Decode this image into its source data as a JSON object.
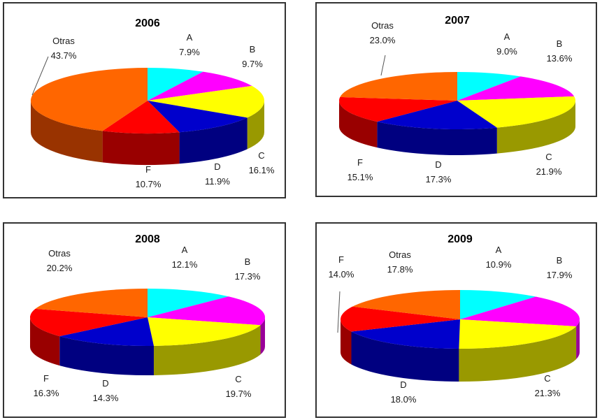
{
  "chart_data": [
    {
      "type": "pie",
      "title": "2006",
      "slices": [
        {
          "label": "A",
          "value": 7.9,
          "value_label": "7.9%"
        },
        {
          "label": "B",
          "value": 9.7,
          "value_label": "9.7%"
        },
        {
          "label": "C",
          "value": 16.1,
          "value_label": "16.1%"
        },
        {
          "label": "D",
          "value": 11.9,
          "value_label": "11.9%"
        },
        {
          "label": "F",
          "value": 10.7,
          "value_label": "10.7%"
        },
        {
          "label": "Otras",
          "value": 43.7,
          "value_label": "43.7%"
        }
      ]
    },
    {
      "type": "pie",
      "title": "2007",
      "slices": [
        {
          "label": "A",
          "value": 9.0,
          "value_label": "9.0%"
        },
        {
          "label": "B",
          "value": 13.6,
          "value_label": "13.6%"
        },
        {
          "label": "C",
          "value": 21.9,
          "value_label": "21.9%"
        },
        {
          "label": "D",
          "value": 17.3,
          "value_label": "17.3%"
        },
        {
          "label": "F",
          "value": 15.1,
          "value_label": "15.1%"
        },
        {
          "label": "Otras",
          "value": 23.0,
          "value_label": "23.0%"
        }
      ]
    },
    {
      "type": "pie",
      "title": "2008",
      "slices": [
        {
          "label": "A",
          "value": 12.1,
          "value_label": "12.1%"
        },
        {
          "label": "B",
          "value": 17.3,
          "value_label": "17.3%"
        },
        {
          "label": "C",
          "value": 19.7,
          "value_label": "19.7%"
        },
        {
          "label": "D",
          "value": 14.3,
          "value_label": "14.3%"
        },
        {
          "label": "F",
          "value": 16.3,
          "value_label": "16.3%"
        },
        {
          "label": "Otras",
          "value": 20.2,
          "value_label": "20.2%"
        }
      ]
    },
    {
      "type": "pie",
      "title": "2009",
      "slices": [
        {
          "label": "A",
          "value": 10.9,
          "value_label": "10.9%"
        },
        {
          "label": "B",
          "value": 17.9,
          "value_label": "17.9%"
        },
        {
          "label": "C",
          "value": 21.3,
          "value_label": "21.3%"
        },
        {
          "label": "D",
          "value": 18.0,
          "value_label": "18.0%"
        },
        {
          "label": "F",
          "value": 14.0,
          "value_label": "14.0%"
        },
        {
          "label": "Otras",
          "value": 17.8,
          "value_label": "17.8%"
        }
      ]
    }
  ],
  "colors": {
    "A": "#00ffff",
    "B": "#ff00ff",
    "C": "#ffff00",
    "D": "#0000cc",
    "F": "#ff0000",
    "Otras": "#ff6600"
  },
  "side_colors": {
    "A": "#009999",
    "B": "#990099",
    "C": "#999900",
    "D": "#000080",
    "F": "#990000",
    "Otras": "#993300"
  }
}
